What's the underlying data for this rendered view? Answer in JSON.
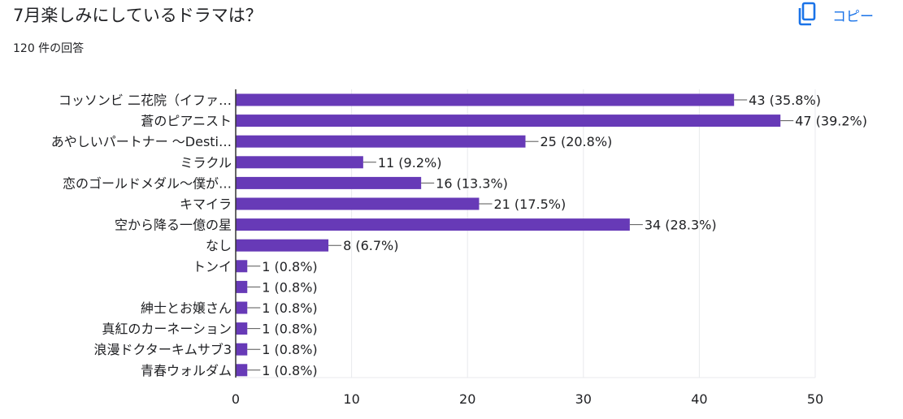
{
  "header": {
    "title": "7月楽しみにしているドラマは？",
    "response_count": "120 件の回答",
    "copy_label": "コピー",
    "copy_icon": "copy-icon"
  },
  "colors": {
    "bar": "#673ab7",
    "grid": "#e8eaed",
    "axis": "#333333",
    "accent": "#1a73e8"
  },
  "chart_data": {
    "type": "bar",
    "orientation": "horizontal",
    "categories": [
      "コッソンビ 二花院（イファ…",
      "蒼のピアニスト",
      "あやしいパートナー 〜Desti…",
      "ミラクル",
      "恋のゴールドメダル〜僕が…",
      "キマイラ",
      "空から降る一億の星",
      "なし",
      "トンイ",
      "",
      "紳士とお嬢さん",
      "真紅のカーネーション",
      "浪漫ドクターキムサブ3",
      "青春ウォルダム"
    ],
    "values": [
      43,
      47,
      25,
      11,
      16,
      21,
      34,
      8,
      1,
      1,
      1,
      1,
      1,
      1
    ],
    "data_labels": [
      "43 (35.8%)",
      "47 (39.2%)",
      "25 (20.8%)",
      "11 (9.2%)",
      "16 (13.3%)",
      "21 (17.5%)",
      "34 (28.3%)",
      "8 (6.7%)",
      "1 (0.8%)",
      "1 (0.8%)",
      "1 (0.8%)",
      "1 (0.8%)",
      "1 (0.8%)",
      "1 (0.8%)"
    ],
    "xlim": [
      0,
      50
    ],
    "xticks": [
      0,
      10,
      20,
      30,
      40,
      50
    ],
    "grid": true,
    "legend": "none"
  }
}
